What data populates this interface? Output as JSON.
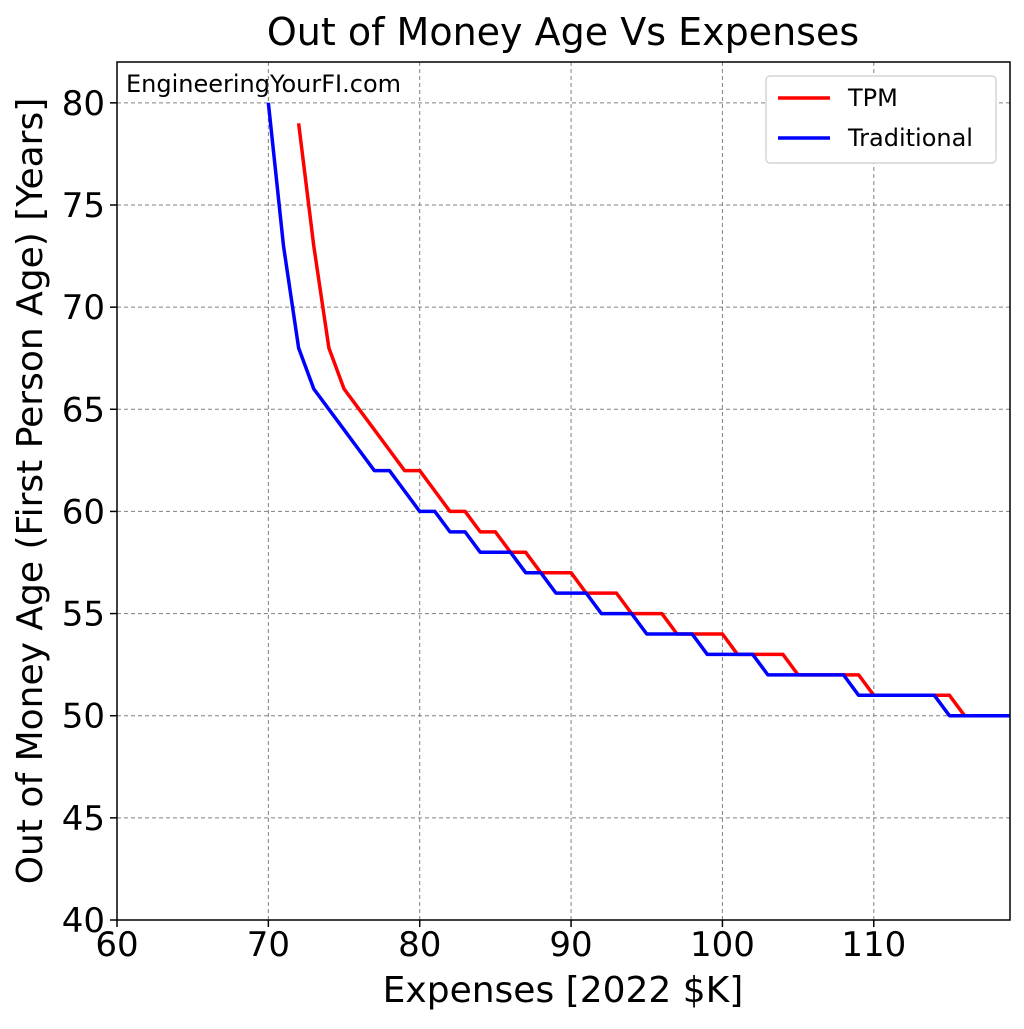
{
  "chart_data": {
    "type": "line",
    "title": "Out of Money Age Vs Expenses",
    "xlabel": "Expenses [2022 $K]",
    "ylabel": "Out of Money Age (First Person Age) [Years]",
    "annotation": "EngineeringYourFI.com",
    "xlim": [
      60,
      119
    ],
    "ylim": [
      40,
      82
    ],
    "xticks": [
      60,
      70,
      80,
      90,
      100,
      110
    ],
    "yticks": [
      40,
      45,
      50,
      55,
      60,
      65,
      70,
      75,
      80
    ],
    "grid": true,
    "legend_position": "top-right",
    "series": [
      {
        "name": "TPM",
        "color": "#ff0000",
        "x": [
          72,
          73,
          74,
          75,
          76,
          77,
          78,
          79,
          80,
          81,
          82,
          83,
          84,
          85,
          86,
          87,
          88,
          89,
          90,
          91,
          92,
          93,
          94,
          95,
          96,
          97,
          98,
          99,
          100,
          101,
          102,
          103,
          104,
          105,
          106,
          107,
          108,
          109,
          110,
          111,
          112,
          113,
          114,
          115,
          116,
          117,
          118,
          119
        ],
        "y": [
          79,
          73,
          68,
          66,
          65,
          64,
          63,
          62,
          62,
          61,
          60,
          60,
          59,
          59,
          58,
          58,
          57,
          57,
          57,
          56,
          56,
          56,
          55,
          55,
          55,
          54,
          54,
          54,
          54,
          53,
          53,
          53,
          53,
          52,
          52,
          52,
          52,
          52,
          51,
          51,
          51,
          51,
          51,
          51,
          50,
          50,
          50,
          50
        ]
      },
      {
        "name": "Traditional",
        "color": "#0000ff",
        "x": [
          70,
          71,
          72,
          73,
          74,
          75,
          76,
          77,
          78,
          79,
          80,
          81,
          82,
          83,
          84,
          85,
          86,
          87,
          88,
          89,
          90,
          91,
          92,
          93,
          94,
          95,
          96,
          97,
          98,
          99,
          100,
          101,
          102,
          103,
          104,
          105,
          106,
          107,
          108,
          109,
          110,
          111,
          112,
          113,
          114,
          115,
          116,
          117,
          118,
          119
        ],
        "y": [
          80,
          73,
          68,
          66,
          65,
          64,
          63,
          62,
          62,
          61,
          60,
          60,
          59,
          59,
          58,
          58,
          58,
          57,
          57,
          56,
          56,
          56,
          55,
          55,
          55,
          54,
          54,
          54,
          54,
          53,
          53,
          53,
          53,
          52,
          52,
          52,
          52,
          52,
          52,
          51,
          51,
          51,
          51,
          51,
          51,
          50,
          50,
          50,
          50,
          50
        ]
      }
    ]
  }
}
